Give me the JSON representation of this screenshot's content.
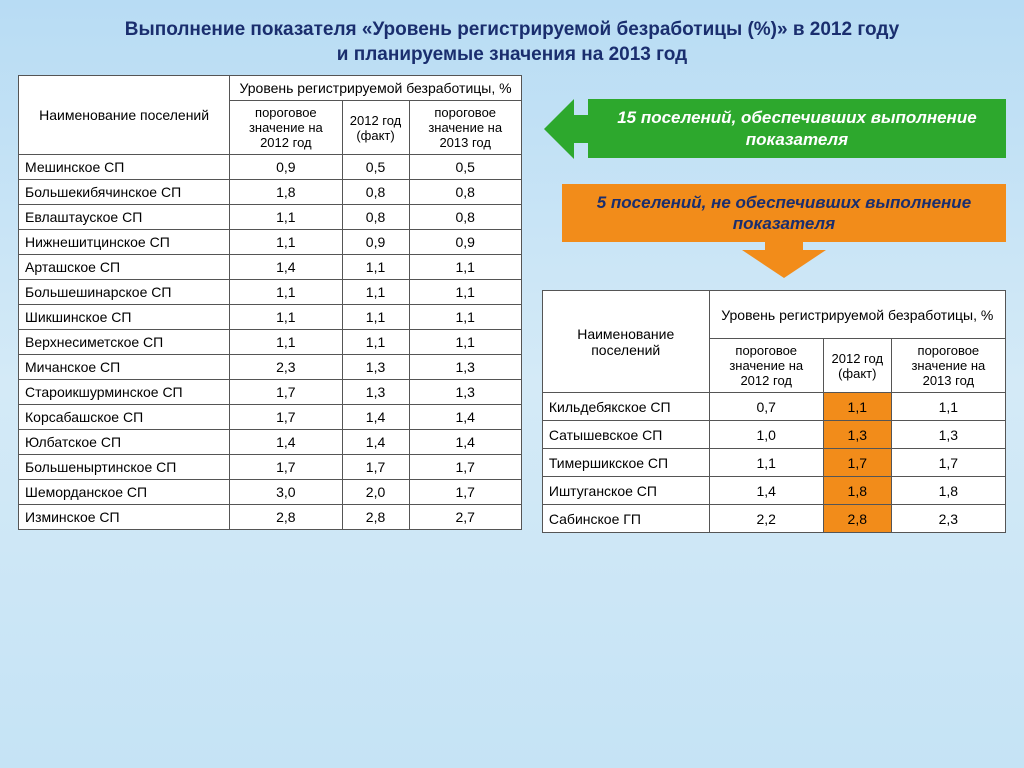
{
  "title_line1": "Выполнение показателя «Уровень регистрируемой безработицы (%)» в 2012 году",
  "title_line2": "и планируемые значения на 2013 год",
  "headers": {
    "name": "Наименование поселений",
    "group": "Уровень регистрируемой безработицы, %",
    "threshold_2012": "пороговое значение на 2012 год",
    "fact_2012": "2012 год (факт)",
    "threshold_2013": "пороговое значение на 2013 год"
  },
  "table1": {
    "rows": [
      {
        "name": "Мешинское СП",
        "a": "0,9",
        "b": "0,5",
        "c": "0,5"
      },
      {
        "name": "Большекибячинское СП",
        "a": "1,8",
        "b": "0,8",
        "c": "0,8"
      },
      {
        "name": "Евлаштауское СП",
        "a": "1,1",
        "b": "0,8",
        "c": "0,8"
      },
      {
        "name": "Нижнешитцинское СП",
        "a": "1,1",
        "b": "0,9",
        "c": "0,9"
      },
      {
        "name": "Арташское СП",
        "a": "1,4",
        "b": "1,1",
        "c": "1,1"
      },
      {
        "name": "Большешинарское СП",
        "a": "1,1",
        "b": "1,1",
        "c": "1,1"
      },
      {
        "name": "Шикшинское СП",
        "a": "1,1",
        "b": "1,1",
        "c": "1,1"
      },
      {
        "name": "Верхнесиметское СП",
        "a": "1,1",
        "b": "1,1",
        "c": "1,1"
      },
      {
        "name": "Мичанское СП",
        "a": "2,3",
        "b": "1,3",
        "c": "1,3"
      },
      {
        "name": "Староикшурминское СП",
        "a": "1,7",
        "b": "1,3",
        "c": "1,3"
      },
      {
        "name": "Корсабашское СП",
        "a": "1,7",
        "b": "1,4",
        "c": "1,4"
      },
      {
        "name": "Юлбатское СП",
        "a": "1,4",
        "b": "1,4",
        "c": "1,4"
      },
      {
        "name": "Большеныртинское СП",
        "a": "1,7",
        "b": "1,7",
        "c": "1,7"
      },
      {
        "name": "Шеморданское СП",
        "a": "3,0",
        "b": "2,0",
        "c": "1,7"
      },
      {
        "name": "Изминское СП",
        "a": "2,8",
        "b": "2,8",
        "c": "2,7"
      }
    ]
  },
  "callout_green": "15 поселений, обеспечивших выполнение показателя",
  "callout_orange": "5 поселений, не обеспечивших выполнение показателя",
  "table2": {
    "rows": [
      {
        "name": "Кильдебякское СП",
        "a": "0,7",
        "b": "1,1",
        "c": "1,1"
      },
      {
        "name": "Сатышевское СП",
        "a": "1,0",
        "b": "1,3",
        "c": "1,3"
      },
      {
        "name": "Тимершикское СП",
        "a": "1,1",
        "b": "1,7",
        "c": "1,7"
      },
      {
        "name": "Иштуганское СП",
        "a": "1,4",
        "b": "1,8",
        "c": "1,8"
      },
      {
        "name": "Сабинское ГП",
        "a": "2,2",
        "b": "2,8",
        "c": "2,3"
      }
    ],
    "highlight_col": "b",
    "highlight_color": "#f28c1a"
  },
  "colors": {
    "title": "#1a2e6e",
    "border": "#555555",
    "green": "#2da82d",
    "orange": "#f28c1a",
    "bg_top": "#b8dcf4",
    "bg_bottom": "#c5e3f5"
  },
  "fonts": {
    "title_size": 19,
    "cell_size": 14,
    "callout_size": 17
  }
}
